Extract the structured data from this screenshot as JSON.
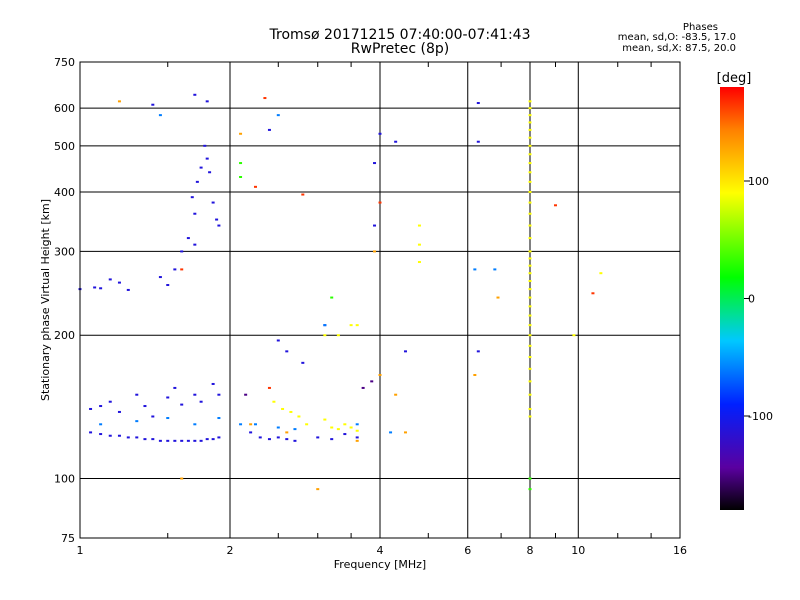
{
  "header": {
    "title": "Tromsø 20171215 07:40:00-07:41:43",
    "subtitle": "RwPretec (8p)",
    "phases_title": "Phases",
    "stat_o": "mean, sd,O: -83.5, 17.0",
    "stat_x": "mean, sd,X:  87.5, 20.0"
  },
  "chart_data": {
    "type": "scatter",
    "xlabel": "Frequency [MHz]",
    "ylabel": "Stationary phase Virtual Height [km]",
    "x_scale": "log",
    "y_scale": "log",
    "xlim": [
      1,
      16
    ],
    "ylim": [
      75,
      750
    ],
    "x_ticks": [
      1,
      2,
      4,
      6,
      8,
      10,
      16
    ],
    "x_tick_labels": [
      "1",
      "2",
      "4",
      "6",
      "8",
      "10",
      "16"
    ],
    "y_ticks": [
      75,
      100,
      200,
      300,
      400,
      500,
      600,
      750
    ],
    "y_tick_labels": [
      "75",
      "100",
      "200",
      "300",
      "400",
      "500",
      "600",
      "750"
    ],
    "grid": true,
    "colorbar": {
      "label": "[deg]",
      "range": [
        -180,
        180
      ],
      "ticks": [
        100,
        0,
        -100
      ],
      "tick_labels": [
        "100",
        "0",
        "-100"
      ]
    },
    "series": [
      {
        "color_value": -110,
        "points": [
          [
            1.05,
            125
          ],
          [
            1.1,
            124
          ],
          [
            1.15,
            123
          ],
          [
            1.2,
            123
          ],
          [
            1.25,
            122
          ],
          [
            1.3,
            122
          ],
          [
            1.35,
            121
          ],
          [
            1.4,
            121
          ],
          [
            1.45,
            120
          ],
          [
            1.5,
            120
          ],
          [
            1.55,
            120
          ],
          [
            1.6,
            120
          ],
          [
            1.65,
            120
          ],
          [
            1.7,
            120
          ],
          [
            1.75,
            120
          ],
          [
            1.8,
            121
          ],
          [
            1.85,
            121
          ],
          [
            1.9,
            122
          ],
          [
            1.05,
            140
          ],
          [
            1.1,
            142
          ],
          [
            1.15,
            145
          ],
          [
            1.2,
            138
          ],
          [
            1.3,
            150
          ],
          [
            1.35,
            142
          ],
          [
            1.4,
            135
          ],
          [
            1.5,
            148
          ],
          [
            1.55,
            155
          ],
          [
            1.6,
            143
          ],
          [
            1.7,
            150
          ],
          [
            1.75,
            145
          ],
          [
            1.85,
            158
          ],
          [
            1.9,
            150
          ],
          [
            1.0,
            250
          ],
          [
            1.07,
            252
          ],
          [
            1.1,
            251
          ],
          [
            1.15,
            262
          ],
          [
            1.2,
            258
          ],
          [
            1.25,
            249
          ],
          [
            1.45,
            265
          ],
          [
            1.5,
            255
          ],
          [
            1.55,
            275
          ],
          [
            1.6,
            300
          ],
          [
            1.65,
            320
          ],
          [
            1.7,
            310
          ],
          [
            1.72,
            420
          ],
          [
            1.75,
            450
          ],
          [
            1.78,
            500
          ],
          [
            1.8,
            470
          ],
          [
            1.82,
            440
          ],
          [
            1.85,
            380
          ],
          [
            1.88,
            350
          ],
          [
            1.9,
            340
          ],
          [
            1.7,
            360
          ],
          [
            1.68,
            390
          ],
          [
            1.4,
            610
          ],
          [
            1.7,
            640
          ],
          [
            1.8,
            620
          ],
          [
            2.4,
            540
          ],
          [
            4.0,
            530
          ],
          [
            4.3,
            510
          ],
          [
            3.9,
            460
          ],
          [
            3.9,
            340
          ],
          [
            6.3,
            615
          ],
          [
            6.3,
            510
          ],
          [
            2.2,
            125
          ],
          [
            2.3,
            122
          ],
          [
            2.4,
            121
          ],
          [
            2.5,
            122
          ],
          [
            2.6,
            121
          ],
          [
            2.7,
            120
          ],
          [
            3.0,
            122
          ],
          [
            3.2,
            121
          ],
          [
            3.4,
            124
          ],
          [
            3.6,
            122
          ],
          [
            4.5,
            185
          ],
          [
            6.3,
            185
          ],
          [
            2.5,
            195
          ],
          [
            2.6,
            185
          ],
          [
            2.8,
            175
          ],
          [
            3.1,
            210
          ]
        ]
      },
      {
        "color_value": -60,
        "points": [
          [
            1.45,
            580
          ],
          [
            2.5,
            580
          ],
          [
            1.1,
            130
          ],
          [
            1.3,
            132
          ],
          [
            1.5,
            134
          ],
          [
            1.7,
            130
          ],
          [
            1.9,
            134
          ],
          [
            2.1,
            130
          ],
          [
            2.25,
            130
          ],
          [
            2.5,
            128
          ],
          [
            2.7,
            127
          ],
          [
            3.1,
            210
          ],
          [
            3.6,
            130
          ],
          [
            6.2,
            275
          ],
          [
            6.8,
            275
          ],
          [
            4.2,
            125
          ]
        ]
      },
      {
        "color_value": 90,
        "points": [
          [
            8.0,
            620
          ],
          [
            8.0,
            600
          ],
          [
            8.0,
            580
          ],
          [
            8.0,
            560
          ],
          [
            8.0,
            540
          ],
          [
            8.0,
            520
          ],
          [
            8.0,
            500
          ],
          [
            8.0,
            480
          ],
          [
            8.0,
            460
          ],
          [
            8.0,
            440
          ],
          [
            8.0,
            420
          ],
          [
            8.0,
            400
          ],
          [
            8.0,
            380
          ],
          [
            8.0,
            360
          ],
          [
            8.0,
            340
          ],
          [
            8.0,
            320
          ],
          [
            8.0,
            300
          ],
          [
            8.0,
            290
          ],
          [
            8.0,
            280
          ],
          [
            8.0,
            270
          ],
          [
            8.0,
            260
          ],
          [
            8.0,
            250
          ],
          [
            8.0,
            240
          ],
          [
            8.0,
            230
          ],
          [
            8.0,
            220
          ],
          [
            8.0,
            210
          ],
          [
            8.0,
            200
          ],
          [
            8.0,
            190
          ],
          [
            8.0,
            180
          ],
          [
            8.0,
            170
          ],
          [
            8.0,
            160
          ],
          [
            8.0,
            150
          ],
          [
            8.0,
            140
          ],
          [
            8.0,
            135
          ],
          [
            2.45,
            145
          ],
          [
            2.55,
            140
          ],
          [
            2.65,
            138
          ],
          [
            2.75,
            135
          ],
          [
            2.85,
            130
          ],
          [
            3.1,
            133
          ],
          [
            3.2,
            128
          ],
          [
            3.3,
            127
          ],
          [
            3.4,
            130
          ],
          [
            3.5,
            128
          ],
          [
            3.6,
            126
          ],
          [
            3.5,
            210
          ],
          [
            3.6,
            210
          ],
          [
            3.3,
            200
          ],
          [
            3.1,
            200
          ],
          [
            4.8,
            340
          ],
          [
            4.8,
            310
          ],
          [
            4.8,
            285
          ],
          [
            9.8,
            200
          ],
          [
            11.1,
            270
          ]
        ]
      },
      {
        "color_value": 30,
        "points": [
          [
            2.1,
            460
          ],
          [
            2.1,
            430
          ],
          [
            3.2,
            240
          ],
          [
            8.0,
            100
          ],
          [
            8.0,
            95
          ]
        ]
      },
      {
        "color_value": 130,
        "points": [
          [
            2.2,
            130
          ],
          [
            2.6,
            125
          ],
          [
            3.6,
            120
          ],
          [
            3.0,
            95
          ],
          [
            1.2,
            620
          ],
          [
            1.6,
            100
          ],
          [
            2.1,
            530
          ],
          [
            3.9,
            300
          ],
          [
            4.3,
            150
          ],
          [
            4.0,
            165
          ],
          [
            6.2,
            165
          ],
          [
            6.9,
            240
          ],
          [
            4.5,
            125
          ]
        ]
      },
      {
        "color_value": 165,
        "points": [
          [
            2.35,
            630
          ],
          [
            2.25,
            410
          ],
          [
            2.8,
            395
          ],
          [
            4.0,
            380
          ],
          [
            9.0,
            375
          ],
          [
            10.7,
            245
          ],
          [
            2.4,
            155
          ],
          [
            1.6,
            275
          ]
        ]
      },
      {
        "color_value": -150,
        "points": [
          [
            3.7,
            155
          ],
          [
            3.85,
            160
          ],
          [
            2.15,
            150
          ]
        ]
      }
    ]
  }
}
